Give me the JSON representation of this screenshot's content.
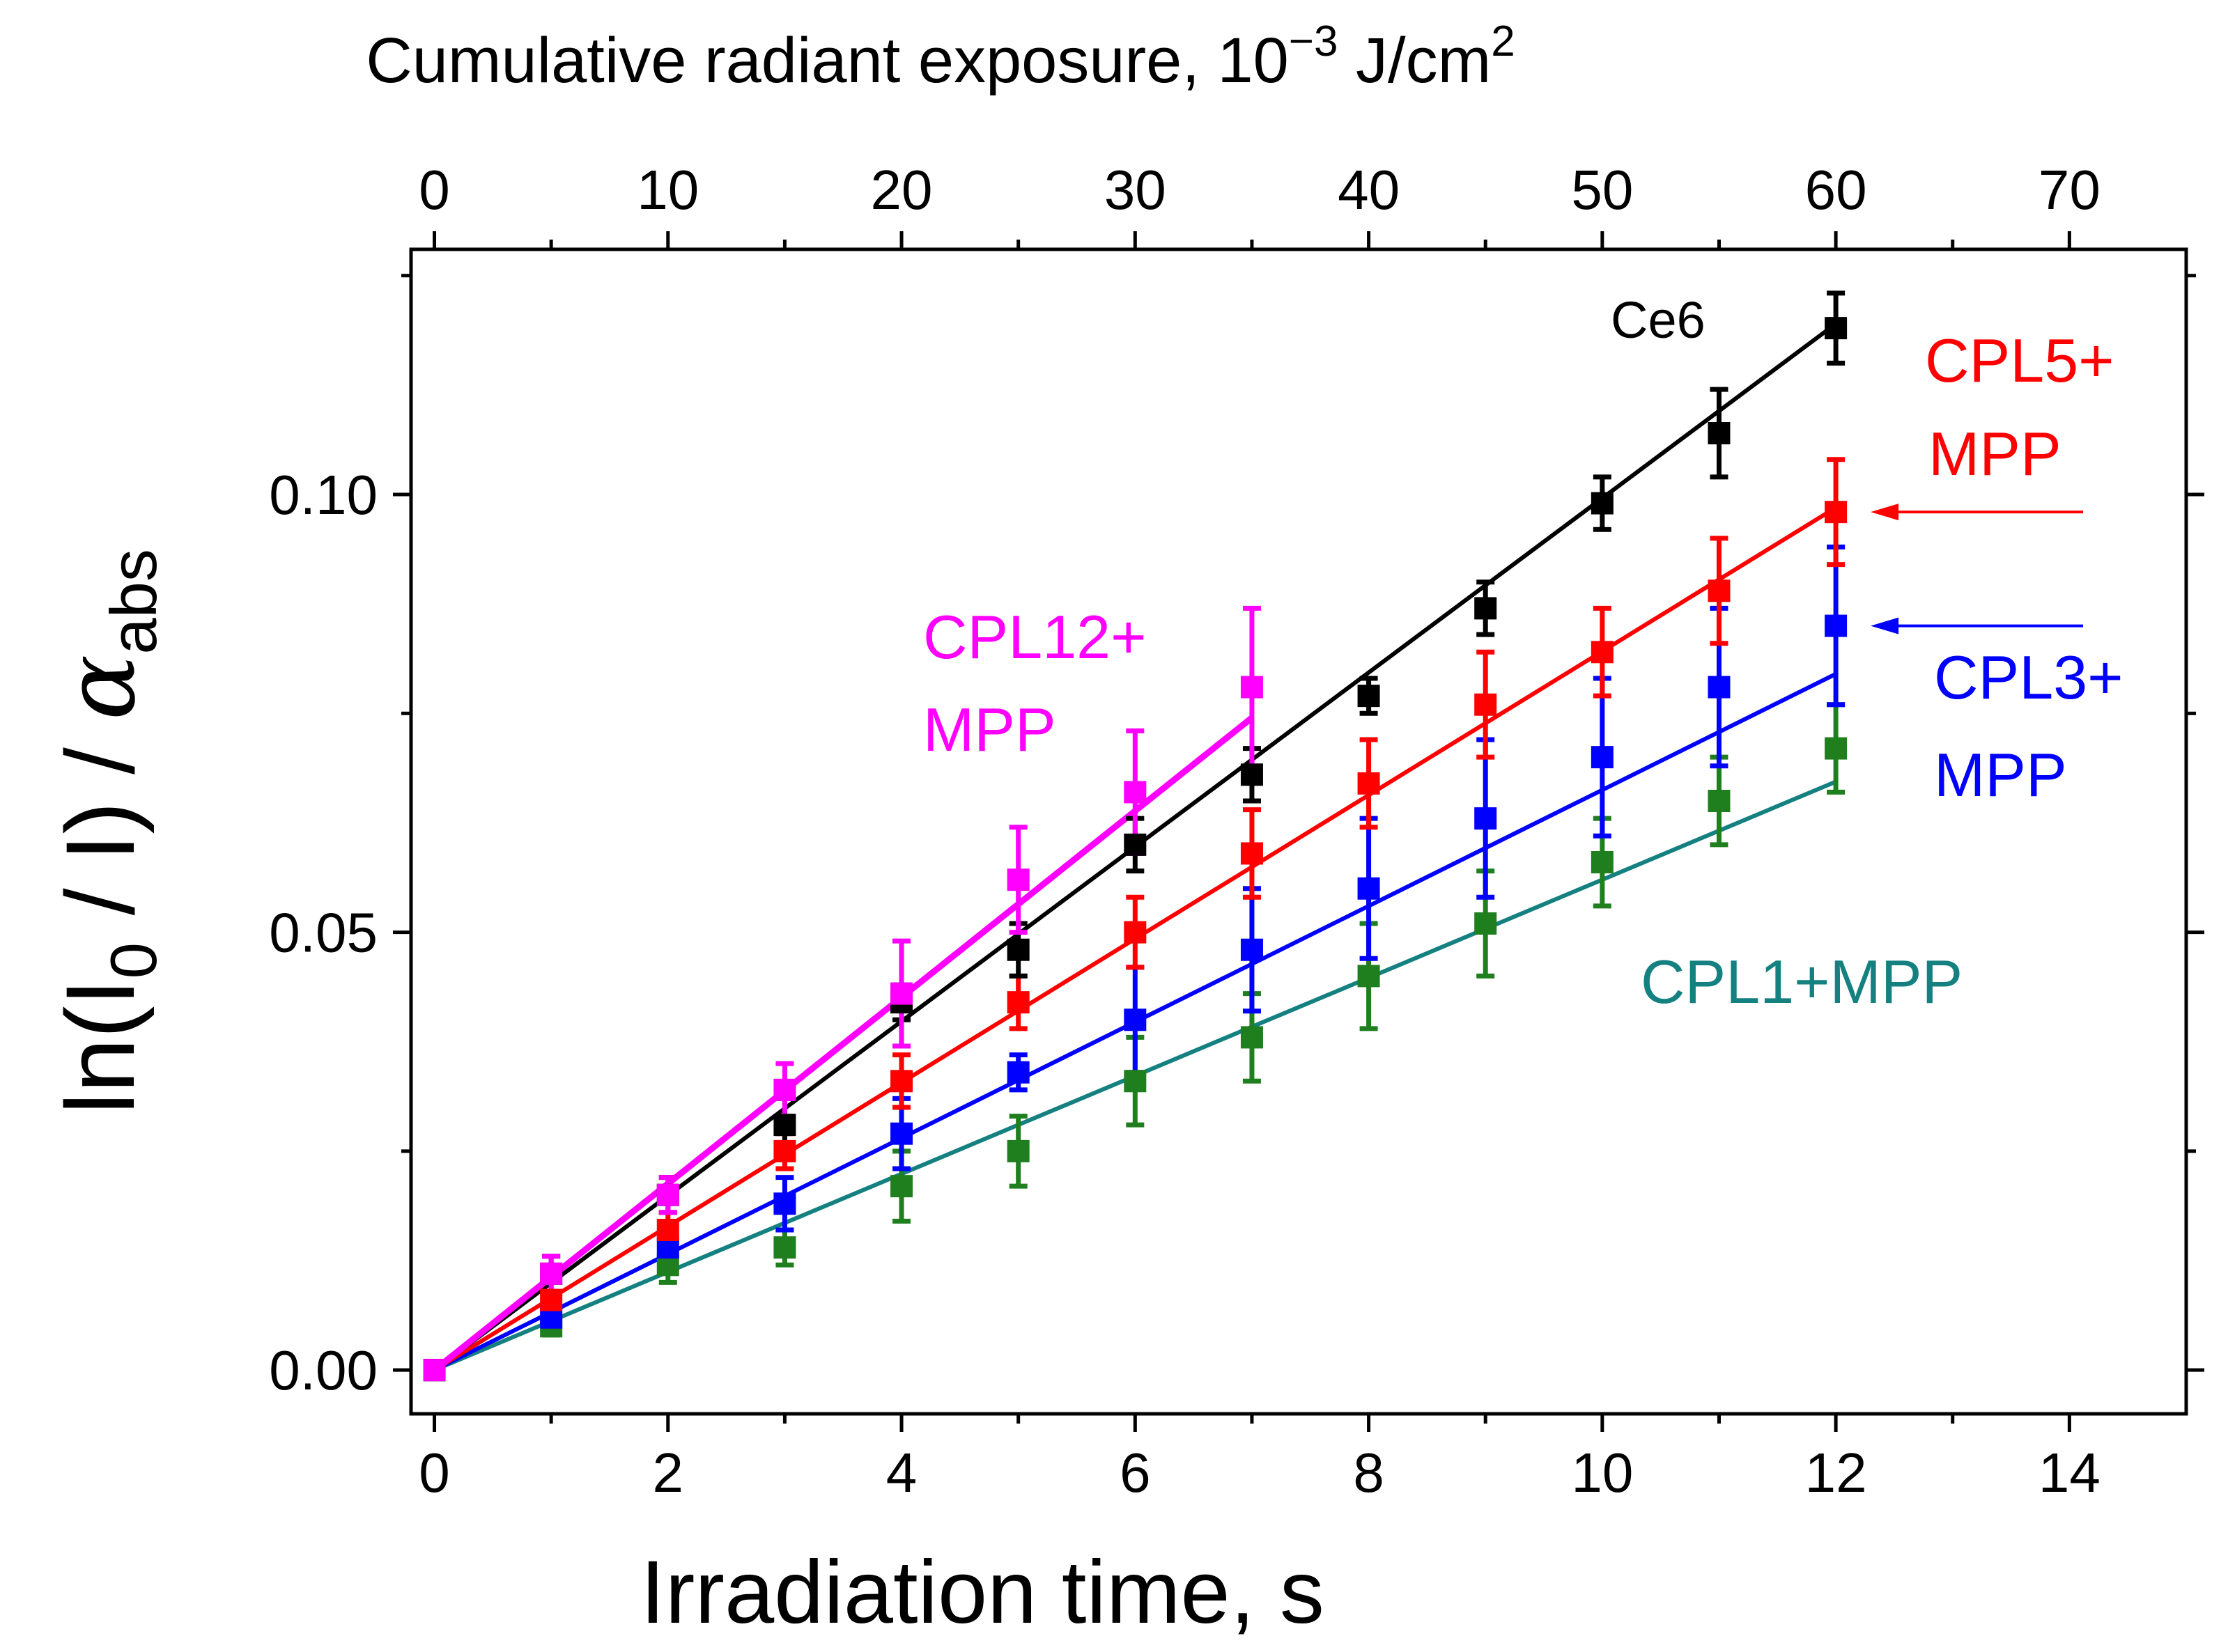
{
  "colors": {
    "Ce6": "#000000",
    "CPL5+MPP": "#ff0000",
    "CPL3+MPP": "#0000ff",
    "CPL1+MPP": "#1f7f1f",
    "CPL1+MPP_fit": "#158080",
    "CPL12+MPP": "#ff00ff"
  },
  "chart_data": {
    "type": "scatter",
    "xlabel": "Irradiation time, s",
    "ylabel": {
      "main": "ln(I",
      "sub0": "0",
      "mid": " / I) / ",
      "alpha": "α",
      "subabs": "abs"
    },
    "top_xlabel": {
      "main": "Cumulative radiant exposure, 10",
      "exp": "−3",
      "unit": " J/cm",
      "unit_exp": "2"
    },
    "xlim": [
      -0.2,
      15
    ],
    "ylim": [
      -0.005,
      0.128
    ],
    "top_xlim": [
      -1,
      75
    ],
    "x_ticks": [
      0,
      2,
      4,
      6,
      8,
      10,
      12,
      14
    ],
    "x_tick_labels": [
      "0",
      "2",
      "4",
      "6",
      "8",
      "10",
      "12",
      "14"
    ],
    "x_minor_ticks": [
      1,
      3,
      5,
      7,
      9,
      11,
      13
    ],
    "y_ticks": [
      0,
      0.05,
      0.1
    ],
    "y_tick_labels": [
      "0.00",
      "0.05",
      "0.10"
    ],
    "y_minor_ticks": [
      0.025,
      0.075,
      0.125
    ],
    "top_ticks": [
      0,
      10,
      20,
      30,
      40,
      50,
      60,
      70
    ],
    "top_tick_labels": [
      "0",
      "10",
      "20",
      "30",
      "40",
      "50",
      "60",
      "70"
    ],
    "top_minor_ticks": [
      5,
      15,
      25,
      35,
      45,
      55,
      65
    ],
    "series": [
      {
        "name": "Ce6",
        "label_lines": [
          "Ce6"
        ],
        "x": [
          0,
          1,
          2,
          3,
          4,
          5,
          6,
          7,
          8,
          9,
          10,
          11,
          12
        ],
        "y": [
          0,
          0.011,
          0.02,
          0.028,
          0.042,
          0.048,
          0.06,
          0.068,
          0.077,
          0.087,
          0.099,
          0.107,
          0.119
        ],
        "err": [
          0,
          0.002,
          0.002,
          0.003,
          0.002,
          0.003,
          0.003,
          0.003,
          0.002,
          0.003,
          0.003,
          0.005,
          0.004
        ],
        "fit": [
          [
            0,
            0
          ],
          [
            12,
            0.1195
          ]
        ]
      },
      {
        "name": "CPL5+MPP",
        "label_lines": [
          "CPL5+",
          "MPP"
        ],
        "x": [
          0,
          1,
          2,
          3,
          4,
          5,
          6,
          7,
          8,
          9,
          10,
          11,
          12
        ],
        "y": [
          0,
          0.008,
          0.016,
          0.025,
          0.033,
          0.042,
          0.05,
          0.059,
          0.067,
          0.076,
          0.082,
          0.089,
          0.098
        ],
        "err": [
          0,
          0.001,
          0.002,
          0.002,
          0.003,
          0.003,
          0.004,
          0.005,
          0.005,
          0.006,
          0.005,
          0.006,
          0.006
        ],
        "fit": [
          [
            0,
            0
          ],
          [
            12,
            0.0985
          ]
        ]
      },
      {
        "name": "CPL3+MPP",
        "label_lines": [
          "CPL3+",
          "MPP"
        ],
        "x": [
          0,
          1,
          2,
          3,
          4,
          5,
          6,
          7,
          8,
          9,
          10,
          11,
          12
        ],
        "y": [
          0,
          0.006,
          0.014,
          0.019,
          0.027,
          0.034,
          0.04,
          0.048,
          0.055,
          0.063,
          0.07,
          0.078,
          0.085
        ],
        "err": [
          0,
          0.001,
          0.002,
          0.003,
          0.004,
          0.002,
          0.006,
          0.007,
          0.008,
          0.009,
          0.009,
          0.009,
          0.009
        ],
        "fit": [
          [
            0,
            0
          ],
          [
            12,
            0.0795
          ]
        ]
      },
      {
        "name": "CPL1+MPP",
        "label_lines": [
          "CPL1+MPP"
        ],
        "x": [
          0,
          1,
          2,
          3,
          4,
          5,
          6,
          7,
          8,
          9,
          10,
          11,
          12
        ],
        "y": [
          0,
          0.005,
          0.012,
          0.014,
          0.021,
          0.025,
          0.033,
          0.038,
          0.045,
          0.051,
          0.058,
          0.065,
          0.071
        ],
        "err": [
          0,
          0.001,
          0.002,
          0.002,
          0.004,
          0.004,
          0.005,
          0.005,
          0.006,
          0.006,
          0.005,
          0.005,
          0.005
        ],
        "fit": [
          [
            0,
            0
          ],
          [
            12,
            0.0672
          ]
        ]
      },
      {
        "name": "CPL12+MPP",
        "label_lines": [
          "CPL12+",
          "MPP"
        ],
        "x": [
          0,
          1,
          2,
          3,
          4,
          5,
          6,
          7
        ],
        "y": [
          0,
          0.011,
          0.02,
          0.032,
          0.043,
          0.056,
          0.066,
          0.078
        ],
        "err": [
          0,
          0.002,
          0.002,
          0.003,
          0.006,
          0.006,
          0.007,
          0.009
        ],
        "fit": [
          [
            0,
            0
          ],
          [
            7,
            0.0745
          ]
        ]
      }
    ]
  }
}
